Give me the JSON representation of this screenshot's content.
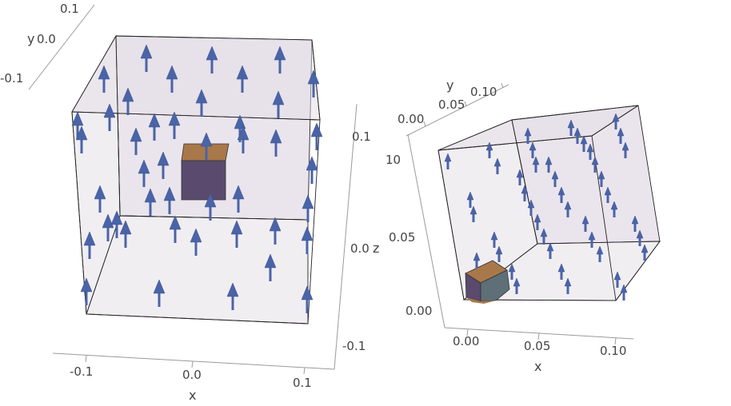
{
  "plots": [
    {
      "id": "left-plot",
      "axis_titles": {
        "x": "x",
        "y": "y",
        "z": "z"
      },
      "x_ticks": [
        "-0.1",
        "0.0",
        "0.1"
      ],
      "y_ticks": [
        "0.1",
        "0.0",
        "-0.1"
      ],
      "z_ticks": [
        "0.1",
        "0.0",
        "-0.1"
      ]
    },
    {
      "id": "right-plot",
      "axis_titles": {
        "x": "x",
        "y": "y"
      },
      "x_ticks": [
        "0.00",
        "0.05",
        "0.10"
      ],
      "y_ticks": [
        "0.00",
        "0.05",
        "0.10"
      ],
      "z_ticks": [
        "10",
        "0.05",
        "0.00"
      ]
    }
  ],
  "colors": {
    "arrow": "#4a64a8",
    "cube_top": "#a8784a",
    "cube_front": "#5a4a6e",
    "cube_side": "#5e6f78",
    "box_face": "#d8d0dc"
  }
}
